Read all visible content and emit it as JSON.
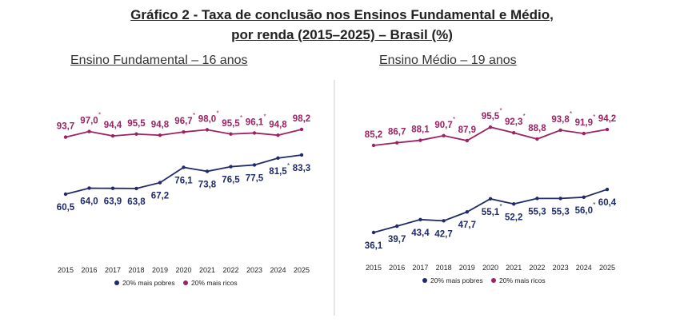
{
  "title_line1": "Gráfico 2 - Taxa de conclusão nos Ensinos Fundamental e Médio,",
  "title_line2": "por renda (2015–2025) – Brasil (%)",
  "colors": {
    "poor": "#1f2a6b",
    "rich": "#9c2263",
    "divider": "#cccccc"
  },
  "chart_data": [
    {
      "type": "line",
      "title": "Ensino Fundamental – 16 anos",
      "categories": [
        "2015",
        "2016",
        "2017",
        "2018",
        "2019",
        "2020",
        "2021",
        "2022",
        "2023",
        "2024",
        "2025"
      ],
      "series": [
        {
          "name": "20% mais pobres",
          "values": [
            60.5,
            64.0,
            63.9,
            63.8,
            67.2,
            76.1,
            73.8,
            76.5,
            77.5,
            81.5,
            83.3
          ],
          "labels": [
            "60,5",
            "64,0",
            "63,9",
            "63,8",
            "67,2",
            "76,1",
            "73,8",
            "76,5",
            "77,5",
            "81,5",
            "83,3"
          ],
          "asterisk": [
            false,
            false,
            false,
            false,
            false,
            false,
            false,
            false,
            false,
            true,
            false
          ]
        },
        {
          "name": "20% mais ricos",
          "values": [
            93.7,
            97.0,
            94.4,
            95.5,
            94.8,
            96.7,
            98.0,
            95.5,
            96.1,
            94.8,
            98.2
          ],
          "labels": [
            "93,7",
            "97,0",
            "94,4",
            "95,5",
            "94,8",
            "96,7",
            "98,0",
            "95,5",
            "96,1",
            "94,8",
            "98,2"
          ],
          "asterisk": [
            false,
            true,
            false,
            false,
            false,
            true,
            true,
            true,
            true,
            false,
            false
          ]
        }
      ],
      "legend": "bottom"
    },
    {
      "type": "line",
      "title": "Ensino Médio – 19 anos",
      "categories": [
        "2015",
        "2016",
        "2017",
        "2018",
        "2019",
        "2020",
        "2021",
        "2022",
        "2023",
        "2024",
        "2025"
      ],
      "series": [
        {
          "name": "20% mais pobres",
          "values": [
            36.1,
            39.7,
            43.4,
            42.7,
            47.7,
            55.1,
            52.2,
            55.3,
            55.3,
            56.0,
            60.4
          ],
          "labels": [
            "36,1",
            "39,7",
            "43,4",
            "42,7",
            "47,7",
            "55,1",
            "52,2",
            "55,3",
            "55,3",
            "56,0",
            "60,4"
          ],
          "asterisk": [
            false,
            false,
            false,
            false,
            false,
            true,
            false,
            false,
            false,
            true,
            false
          ]
        },
        {
          "name": "20% mais ricos",
          "values": [
            85.2,
            86.7,
            88.1,
            90.7,
            87.9,
            95.5,
            92.3,
            88.8,
            93.8,
            91.9,
            94.2
          ],
          "labels": [
            "85,2",
            "86,7",
            "88,1",
            "90,7",
            "87,9",
            "95,5",
            "92,3",
            "88,8",
            "93,8",
            "91,9",
            "94,2"
          ],
          "asterisk": [
            false,
            false,
            false,
            true,
            false,
            true,
            true,
            false,
            true,
            true,
            false
          ]
        }
      ],
      "legend": "bottom"
    }
  ]
}
